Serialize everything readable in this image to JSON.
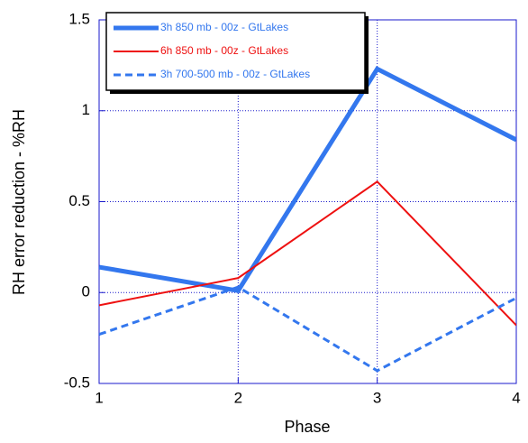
{
  "chart_data": {
    "type": "line",
    "x_label": "Phase",
    "y_label": "RH error reduction - %RH",
    "x": [
      1,
      2,
      3,
      4
    ],
    "xlim": [
      1,
      4
    ],
    "xticks": [
      1,
      2,
      3,
      4
    ],
    "ylim": [
      -0.5,
      1.5
    ],
    "yticks": [
      -0.5,
      0,
      0.5,
      1,
      1.5
    ],
    "grid": true,
    "legend": "upper left",
    "series": [
      {
        "name": "3h 850 mb - 00z - GtLakes",
        "color": "#3377ee",
        "linewidth": 5,
        "dashed": false,
        "values": [
          0.14,
          0.01,
          1.23,
          0.84
        ]
      },
      {
        "name": "6h 850 mb - 00z - GtLakes",
        "color": "#ee1111",
        "linewidth": 2,
        "dashed": false,
        "values": [
          -0.07,
          0.08,
          0.61,
          -0.18
        ]
      },
      {
        "name": "3h 700-500 mb - 00z - GtLakes",
        "color": "#3377ee",
        "linewidth": 3,
        "dashed": true,
        "values": [
          -0.23,
          0.03,
          -0.43,
          -0.03
        ]
      }
    ]
  }
}
